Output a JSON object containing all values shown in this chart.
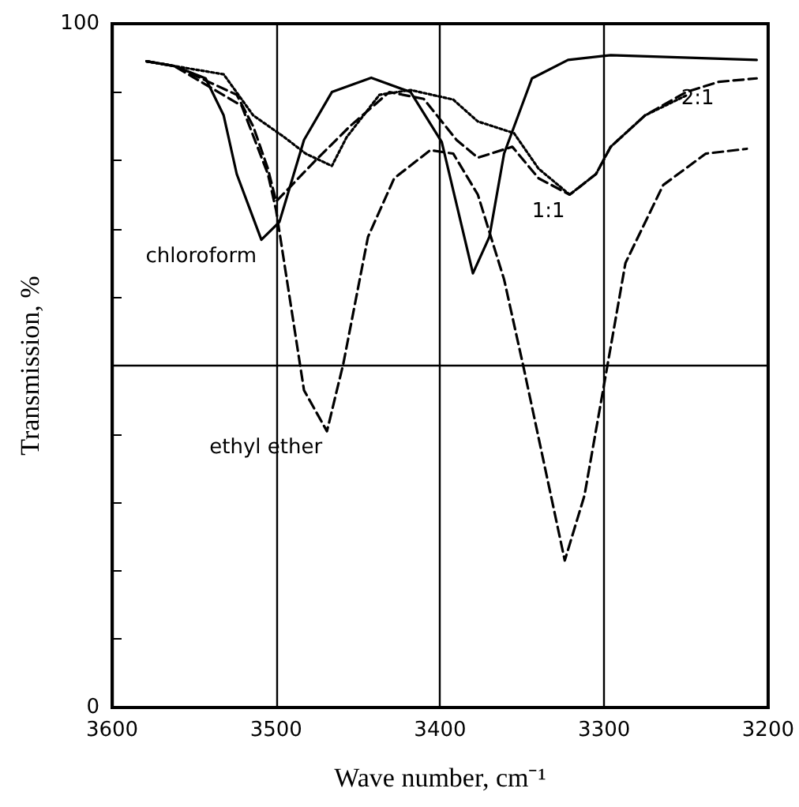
{
  "chart_data": {
    "type": "line",
    "xlabel": "Wave number, cm⁻¹",
    "ylabel": "Transmission, %",
    "xlim": [
      3600,
      3200
    ],
    "xticks": [
      3600,
      3500,
      3400,
      3300,
      3200
    ],
    "ylim": [
      0,
      100
    ],
    "yticks": [
      0,
      {
        "value": 10,
        "label": null
      },
      {
        "value": 20,
        "label": null
      },
      {
        "value": 30,
        "label": null
      },
      {
        "value": 40,
        "label": null
      },
      {
        "value": 50,
        "label": null
      },
      {
        "value": 60,
        "label": null
      },
      {
        "value": 70,
        "label": null
      },
      {
        "value": 80,
        "label": null
      },
      {
        "value": 90,
        "label": null
      },
      100
    ],
    "grid": "x",
    "marker": "none",
    "ref_lines": [
      {
        "axis": "y",
        "value": 50,
        "label": null
      }
    ],
    "series": [
      {
        "color": "#000000",
        "line_style": "solid",
        "x": [
          3579,
          3562,
          3543,
          3532,
          3524,
          3509,
          3498,
          3483,
          3466,
          3442,
          3418,
          3399,
          3380,
          3370,
          3361,
          3344,
          3322,
          3296,
          3207
        ],
        "values": [
          94.5,
          93.8,
          92,
          86.6,
          78,
          68.4,
          71,
          83,
          90,
          92.1,
          90,
          82.7,
          63.5,
          68.8,
          81,
          92,
          94.7,
          95.4,
          94.7
        ]
      },
      {
        "color": "#000000",
        "line_style": "dashed",
        "x": [
          3579,
          3562,
          3521,
          3505,
          3500,
          3483,
          3469,
          3459,
          3444,
          3428,
          3406,
          3392,
          3377,
          3361,
          3349,
          3324,
          3312,
          3298,
          3287,
          3264,
          3238,
          3213
        ],
        "values": [
          94.5,
          93.8,
          88,
          78,
          72.7,
          46.4,
          40.4,
          50.3,
          68.8,
          77.4,
          81.5,
          81,
          75,
          62.6,
          49.6,
          21.5,
          31,
          50,
          65,
          76.4,
          81,
          81.7
        ]
      },
      {
        "color": "#000000",
        "line_style": "dotted",
        "x": [
          3579,
          3562,
          3532,
          3514,
          3495,
          3482,
          3466,
          3457,
          3437,
          3418,
          3392,
          3377,
          3355,
          3340,
          3321,
          3305,
          3296,
          3275,
          3250
        ],
        "values": [
          94.5,
          93.8,
          92.6,
          86.6,
          83.4,
          81,
          79.2,
          83.4,
          89.6,
          90.3,
          88.9,
          85.7,
          84,
          78.8,
          75,
          78,
          82,
          86.6,
          89.5
        ]
      },
      {
        "color": "#000000",
        "line_style": "dashed",
        "x": [
          3579,
          3562,
          3524,
          3514,
          3505,
          3500,
          3476,
          3455,
          3431,
          3410,
          3390,
          3377,
          3356,
          3340,
          3321,
          3305,
          3296,
          3275,
          3250,
          3230,
          3207
        ],
        "values": [
          94.5,
          93.8,
          89.6,
          85,
          78.8,
          74,
          80,
          85,
          90,
          89,
          83,
          80.4,
          82,
          77.4,
          75,
          78,
          82,
          86.6,
          90,
          91.5,
          92
        ]
      }
    ],
    "annotations": [
      {
        "text": "chloroform",
        "x": 3509,
        "y": 68.4
      },
      {
        "text": "ethyl ether",
        "x": 3469,
        "y": 40.4
      },
      {
        "text": "1:1",
        "x": 3321,
        "y": 75
      },
      {
        "text": "2:1",
        "x": 3230,
        "y": 91.5
      }
    ]
  }
}
